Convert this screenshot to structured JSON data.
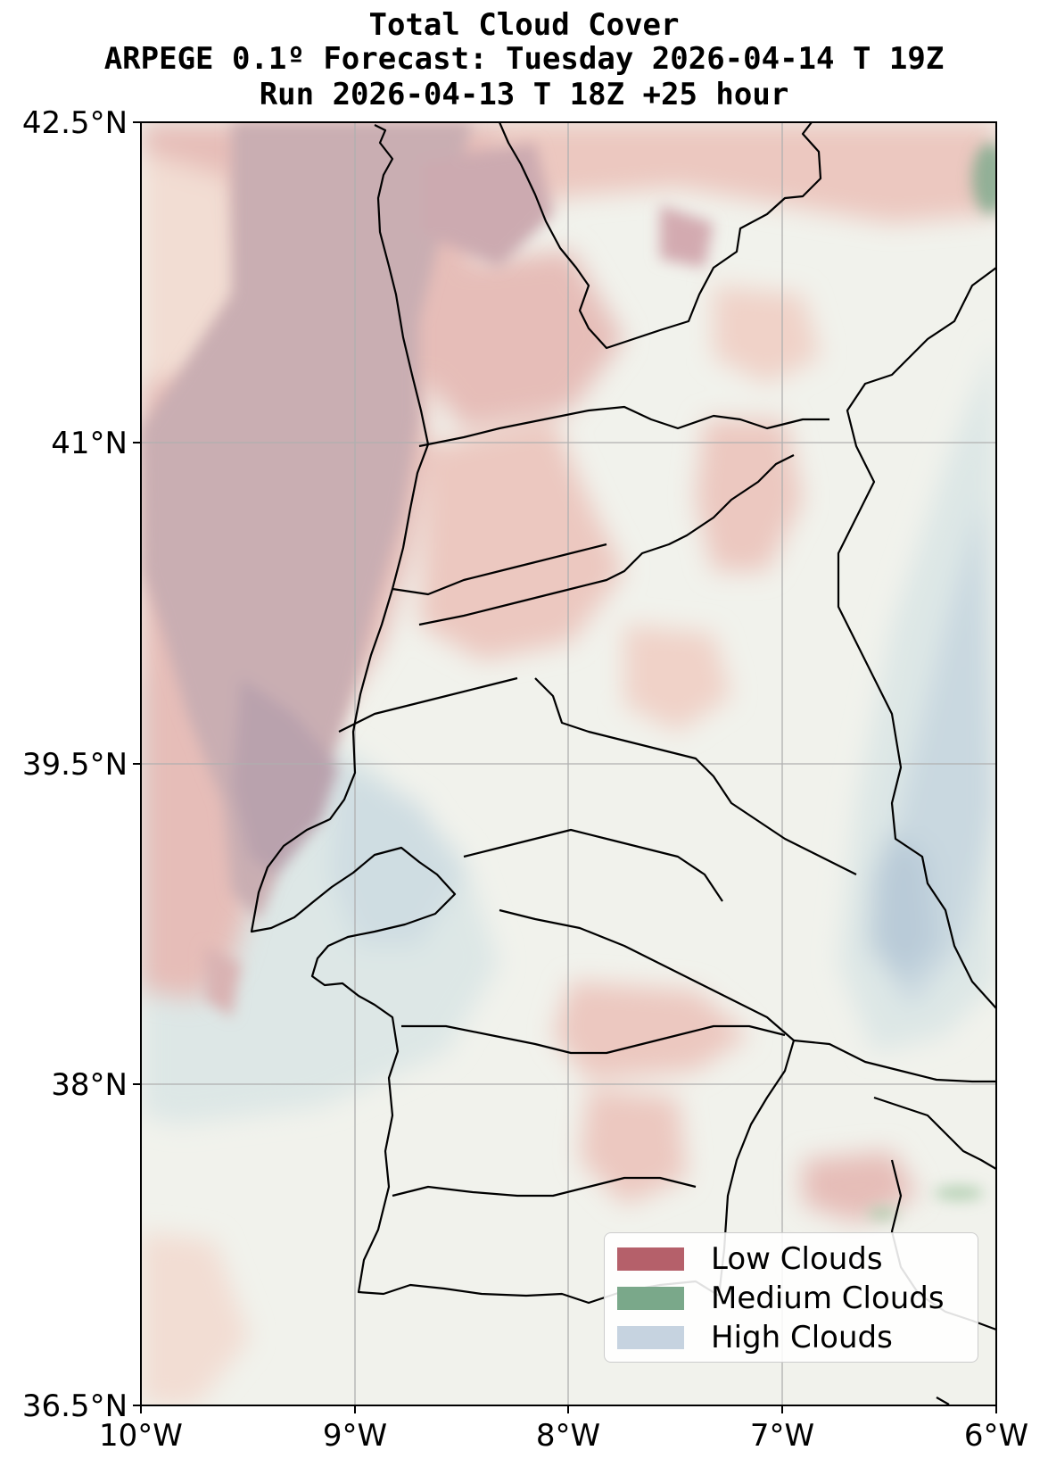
{
  "title": {
    "line1": "Total Cloud Cover",
    "line2": "ARPEGE 0.1º Forecast: Tuesday 2026-04-14 T 19Z",
    "line3": "Run 2026-04-13 T 18Z +25 hour"
  },
  "map": {
    "lon_range": [
      -10,
      -6
    ],
    "lat_range": [
      36.5,
      42.5
    ],
    "grid": true,
    "x_ticks": [
      "10°W",
      "9°W",
      "8°W",
      "7°W",
      "6°W"
    ],
    "y_ticks": [
      "42.5°N",
      "41°N",
      "39.5°N",
      "38°N",
      "36.5°N"
    ]
  },
  "legend": {
    "placement": "bottom-right",
    "items": [
      {
        "label": "Low Clouds",
        "color": "#b5606a"
      },
      {
        "label": "Medium Clouds",
        "color": "#7aa88a"
      },
      {
        "label": "High Clouds",
        "color": "#c6d3e0"
      }
    ]
  },
  "colors": {
    "clear_sky": "#f1f2ec",
    "low_cloud_dense": "#c9aeb2",
    "low_cloud_mid": "#e6bdb8",
    "low_cloud_light": "#f2ddd3",
    "high_cloud_light": "#dde7e6",
    "high_cloud_dense": "#b9cbd8",
    "medium_cloud": "#7aa88a",
    "coastline": "#000000",
    "grid": "#b0b0b0"
  }
}
